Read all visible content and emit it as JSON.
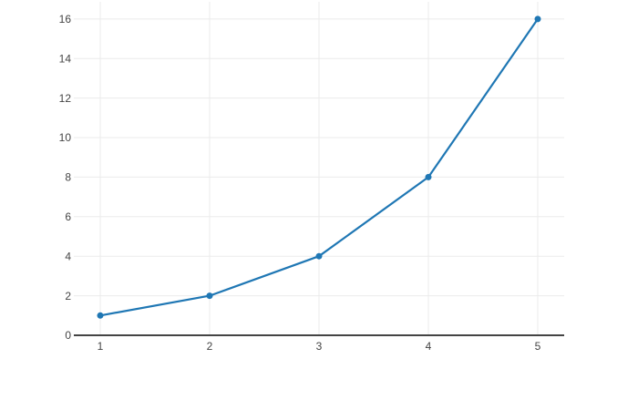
{
  "figure": {
    "title": ""
  },
  "colors": {
    "background": "#ffffff",
    "grid": "#ebebeb",
    "zero_line": "#444444",
    "tick_label": "#444444",
    "line": "#1f77b4",
    "marker": "#1f77b4"
  },
  "chart_data": {
    "type": "line",
    "x": [
      1,
      2,
      3,
      4,
      5
    ],
    "y": [
      1,
      2,
      4,
      8,
      16
    ],
    "title": "",
    "xlabel": "",
    "ylabel": "",
    "x_ticks": [
      1,
      2,
      3,
      4,
      5
    ],
    "y_ticks": [
      0,
      2,
      4,
      6,
      8,
      10,
      12,
      14,
      16
    ],
    "xlim": [
      0.758,
      5.242
    ],
    "ylim": [
      -0.14,
      16.87
    ],
    "grid": true,
    "zero_line": true,
    "markers": true,
    "legend": false
  }
}
